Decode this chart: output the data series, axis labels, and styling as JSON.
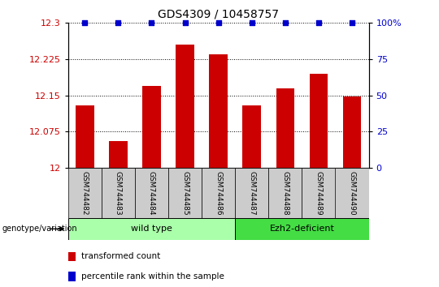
{
  "title": "GDS4309 / 10458757",
  "samples": [
    "GSM744482",
    "GSM744483",
    "GSM744484",
    "GSM744485",
    "GSM744486",
    "GSM744487",
    "GSM744488",
    "GSM744489",
    "GSM744490"
  ],
  "transformed_counts": [
    12.13,
    12.055,
    12.17,
    12.255,
    12.235,
    12.13,
    12.165,
    12.195,
    12.148
  ],
  "percentile_ranks": [
    100,
    100,
    100,
    100,
    100,
    100,
    100,
    100,
    100
  ],
  "ylim_left": [
    12.0,
    12.3
  ],
  "ylim_right": [
    0,
    100
  ],
  "yticks_left": [
    12.0,
    12.075,
    12.15,
    12.225,
    12.3
  ],
  "yticks_right": [
    0,
    25,
    50,
    75,
    100
  ],
  "bar_color": "#cc0000",
  "square_color": "#0000cc",
  "groups": [
    {
      "label": "wild type",
      "indices": [
        0,
        1,
        2,
        3,
        4
      ],
      "color": "#aaffaa"
    },
    {
      "label": "Ezh2-deficient",
      "indices": [
        5,
        6,
        7,
        8
      ],
      "color": "#44dd44"
    }
  ],
  "group_label": "genotype/variation",
  "legend_items": [
    {
      "label": "transformed count",
      "color": "#cc0000"
    },
    {
      "label": "percentile rank within the sample",
      "color": "#0000cc"
    }
  ],
  "background_color": "#ffffff",
  "plot_bg": "#ffffff",
  "tick_label_area_color": "#cccccc"
}
